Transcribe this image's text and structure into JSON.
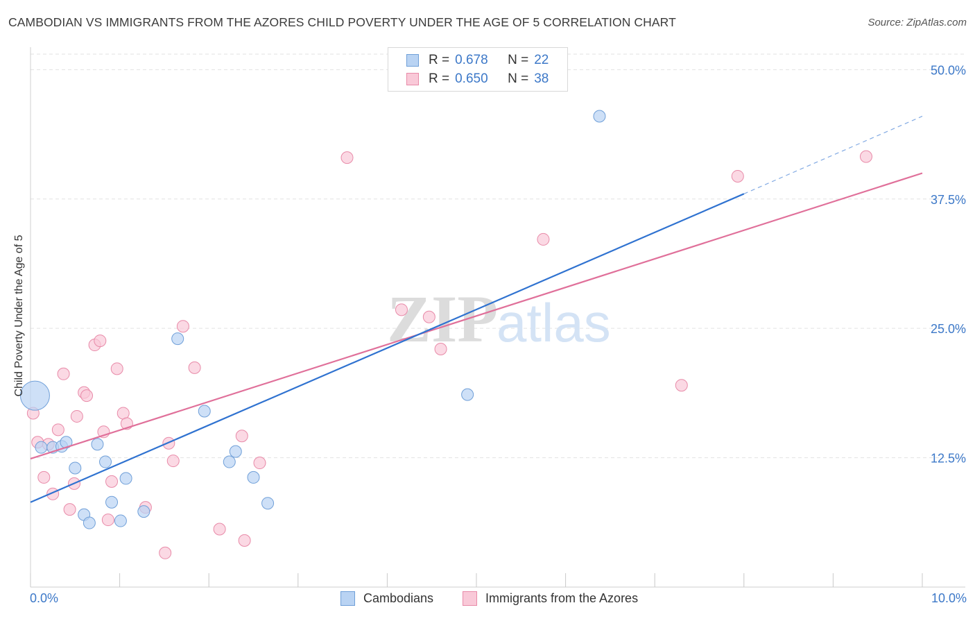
{
  "header": {
    "title": "CAMBODIAN VS IMMIGRANTS FROM THE AZORES CHILD POVERTY UNDER THE AGE OF 5 CORRELATION CHART",
    "source": "Source: ZipAtlas.com"
  },
  "legend": {
    "rows": [
      {
        "r_label": "R =",
        "r_value": "0.678",
        "n_label": "N =",
        "n_value": "22"
      },
      {
        "r_label": "R =",
        "r_value": "0.650",
        "n_label": "N =",
        "n_value": "38"
      }
    ]
  },
  "watermark": {
    "zip": "ZIP",
    "atlas": "atlas"
  },
  "colors": {
    "blue_fill": "#b9d3f3",
    "blue_stroke": "#6f9fd8",
    "blue_line": "#2f72d0",
    "pink_fill": "#f9c9d8",
    "pink_stroke": "#e88aa8",
    "pink_line": "#e0709a",
    "tick_label": "#3c78c8",
    "grid": "#e2e2e2"
  },
  "chart_data": {
    "type": "scatter",
    "title": "CAMBODIAN VS IMMIGRANTS FROM THE AZORES CHILD POVERTY UNDER THE AGE OF 5 CORRELATION CHART",
    "xlabel": "",
    "ylabel": "Child Poverty Under the Age of 5",
    "xlim": [
      0,
      10
    ],
    "ylim": [
      0,
      51.5
    ],
    "x_tick_labels": [
      "0.0%",
      "10.0%"
    ],
    "y_ticks": [
      12.5,
      25.0,
      37.5,
      50.0
    ],
    "y_tick_labels": [
      "12.5%",
      "25.0%",
      "37.5%",
      "50.0%"
    ],
    "legend_position": "bottom",
    "series": [
      {
        "name": "Cambodians",
        "r": 0.678,
        "n": 22,
        "points": [
          {
            "x": 0.05,
            "y": 18.5,
            "size": "large"
          },
          {
            "x": 0.12,
            "y": 13.5
          },
          {
            "x": 0.25,
            "y": 13.5
          },
          {
            "x": 0.35,
            "y": 13.6
          },
          {
            "x": 0.4,
            "y": 14.0
          },
          {
            "x": 0.5,
            "y": 11.5
          },
          {
            "x": 0.6,
            "y": 7.0
          },
          {
            "x": 0.66,
            "y": 6.2
          },
          {
            "x": 0.75,
            "y": 13.8
          },
          {
            "x": 0.84,
            "y": 12.1
          },
          {
            "x": 0.91,
            "y": 8.2
          },
          {
            "x": 1.01,
            "y": 6.4
          },
          {
            "x": 1.07,
            "y": 10.5
          },
          {
            "x": 1.27,
            "y": 7.3
          },
          {
            "x": 1.65,
            "y": 24.0
          },
          {
            "x": 1.95,
            "y": 17.0
          },
          {
            "x": 2.23,
            "y": 12.1
          },
          {
            "x": 2.3,
            "y": 13.1
          },
          {
            "x": 2.5,
            "y": 10.6
          },
          {
            "x": 2.66,
            "y": 8.1
          },
          {
            "x": 4.9,
            "y": 18.6
          },
          {
            "x": 6.38,
            "y": 45.5
          }
        ],
        "trend": {
          "x": [
            0.0,
            8.0
          ],
          "y": [
            8.2,
            38.0
          ]
        },
        "trend_dashed": {
          "x": [
            8.0,
            10.0
          ],
          "y": [
            38.0,
            45.5
          ]
        }
      },
      {
        "name": "Immigrants from the Azores",
        "r": 0.65,
        "n": 38,
        "points": [
          {
            "x": 0.03,
            "y": 16.8
          },
          {
            "x": 0.08,
            "y": 14.0
          },
          {
            "x": 0.15,
            "y": 10.6
          },
          {
            "x": 0.2,
            "y": 13.8
          },
          {
            "x": 0.25,
            "y": 9.0
          },
          {
            "x": 0.31,
            "y": 15.2
          },
          {
            "x": 0.37,
            "y": 20.6
          },
          {
            "x": 0.44,
            "y": 7.5
          },
          {
            "x": 0.49,
            "y": 10.0
          },
          {
            "x": 0.52,
            "y": 16.5
          },
          {
            "x": 0.6,
            "y": 18.8
          },
          {
            "x": 0.63,
            "y": 18.5
          },
          {
            "x": 0.72,
            "y": 23.4
          },
          {
            "x": 0.78,
            "y": 23.8
          },
          {
            "x": 0.82,
            "y": 15.0
          },
          {
            "x": 0.87,
            "y": 6.5
          },
          {
            "x": 0.91,
            "y": 10.2
          },
          {
            "x": 0.97,
            "y": 21.1
          },
          {
            "x": 1.04,
            "y": 16.8
          },
          {
            "x": 1.08,
            "y": 15.8
          },
          {
            "x": 1.29,
            "y": 7.7
          },
          {
            "x": 1.51,
            "y": 3.3
          },
          {
            "x": 1.55,
            "y": 13.9
          },
          {
            "x": 1.6,
            "y": 12.2
          },
          {
            "x": 1.71,
            "y": 25.2
          },
          {
            "x": 1.84,
            "y": 21.2
          },
          {
            "x": 2.12,
            "y": 5.6
          },
          {
            "x": 2.37,
            "y": 14.6
          },
          {
            "x": 2.4,
            "y": 4.5
          },
          {
            "x": 2.57,
            "y": 12.0
          },
          {
            "x": 3.55,
            "y": 41.5
          },
          {
            "x": 4.16,
            "y": 26.8
          },
          {
            "x": 4.47,
            "y": 26.1
          },
          {
            "x": 4.6,
            "y": 23.0
          },
          {
            "x": 5.75,
            "y": 33.6
          },
          {
            "x": 7.3,
            "y": 19.5
          },
          {
            "x": 7.93,
            "y": 39.7
          },
          {
            "x": 9.37,
            "y": 41.6
          }
        ],
        "trend": {
          "x": [
            0.0,
            10.0
          ],
          "y": [
            12.4,
            40.0
          ]
        }
      }
    ]
  }
}
